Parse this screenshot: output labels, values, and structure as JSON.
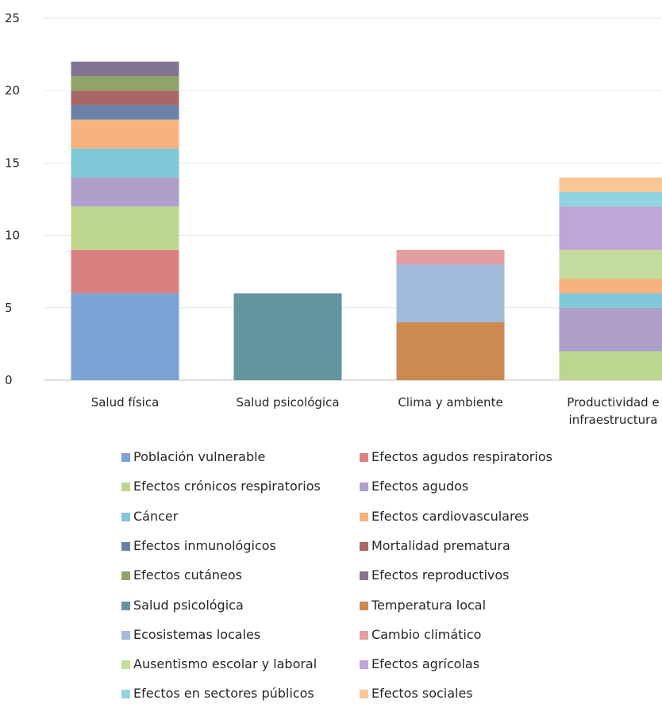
{
  "chart_data": {
    "type": "bar",
    "stacked": true,
    "categories": [
      "Salud física",
      "Salud psicológica",
      "Clima y ambiente",
      "Productividad e infraestructura"
    ],
    "category_lines": [
      [
        "Salud física"
      ],
      [
        "Salud psicológica"
      ],
      [
        "Clima y ambiente"
      ],
      [
        "Productividad e",
        "infraestructura"
      ]
    ],
    "y_ticks": [
      "0",
      "5",
      "10",
      "15",
      "20",
      "25"
    ],
    "ylim": [
      0,
      25
    ],
    "grid": true,
    "legend_position": "bottom",
    "series": [
      {
        "name": "Población vulnerable",
        "color": "#7ba3d4",
        "values": [
          6,
          0,
          0,
          0
        ]
      },
      {
        "name": "Efectos  agudos respiratorios",
        "color": "#d98080",
        "values": [
          3,
          0,
          0,
          0
        ]
      },
      {
        "name": "Efectos  crónicos respiratorios",
        "color": "#bcd68f",
        "values": [
          3,
          0,
          0,
          2
        ]
      },
      {
        "name": "Efectos agudos",
        "color": "#b09ecb",
        "values": [
          2,
          0,
          0,
          3
        ]
      },
      {
        "name": "Cáncer",
        "color": "#7ec8d8",
        "values": [
          2,
          0,
          0,
          1
        ]
      },
      {
        "name": "Efectos cardiovasculares",
        "color": "#f8b27d",
        "values": [
          2,
          0,
          0,
          1
        ]
      },
      {
        "name": "Efectos inmunológicos",
        "color": "#6883a6",
        "values": [
          1,
          0,
          0,
          0
        ]
      },
      {
        "name": "Mortalidad prematura",
        "color": "#a86666",
        "values": [
          1,
          0,
          0,
          0
        ]
      },
      {
        "name": "Efectos cutáneos",
        "color": "#8fa567",
        "values": [
          1,
          0,
          0,
          0
        ]
      },
      {
        "name": "Efectos reproductivos",
        "color": "#857392",
        "values": [
          1,
          0,
          0,
          0
        ]
      },
      {
        "name": "Salud psicológica",
        "color": "#63959d",
        "values": [
          0,
          6,
          0,
          0
        ]
      },
      {
        "name": "Temperatura local",
        "color": "#cc8a50",
        "values": [
          0,
          0,
          4,
          0
        ]
      },
      {
        "name": "Ecosistemas locales",
        "color": "#a1bbdd",
        "values": [
          0,
          0,
          4,
          0
        ]
      },
      {
        "name": "Cambio climático",
        "color": "#e29ea0",
        "values": [
          0,
          0,
          1,
          0
        ]
      },
      {
        "name": "Ausentismo escolar y laboral",
        "color": "#c4dd9e",
        "values": [
          0,
          0,
          0,
          2
        ]
      },
      {
        "name": "Efectos agrícolas",
        "color": "#bca7d6",
        "values": [
          0,
          0,
          0,
          3
        ]
      },
      {
        "name": "Efectos en sectores públicos",
        "color": "#92d3e2",
        "values": [
          0,
          0,
          0,
          1
        ]
      },
      {
        "name": "Efectos sociales",
        "color": "#fbc696",
        "values": [
          0,
          0,
          0,
          1
        ]
      }
    ]
  }
}
